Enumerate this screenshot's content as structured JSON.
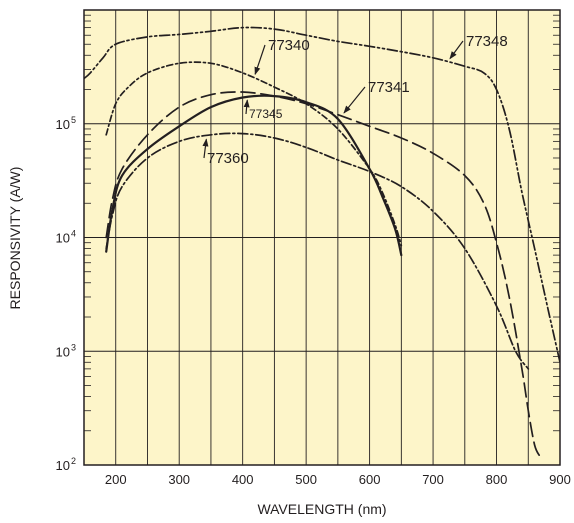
{
  "chart_data": {
    "type": "line",
    "xlabel": "WAVELENGTH (nm)",
    "ylabel": "RESPONSIVITY (A/W)",
    "xlim": [
      150,
      900
    ],
    "ylim_log10": [
      2,
      6
    ],
    "y_scale": "log",
    "grid": true,
    "x_ticks": [
      200,
      300,
      400,
      500,
      600,
      700,
      800,
      900
    ],
    "x_tick_labels": [
      "200",
      "300",
      "400",
      "500",
      "600",
      "700",
      "800",
      "900"
    ],
    "y_ticks": [
      {
        "value": 100,
        "base": "10",
        "exp": "2"
      },
      {
        "value": 1000,
        "base": "10",
        "exp": "3"
      },
      {
        "value": 10000,
        "base": "10",
        "exp": "4"
      },
      {
        "value": 100000,
        "base": "10",
        "exp": "5"
      }
    ],
    "colors": {
      "background": "#fdf5c9",
      "grid": "#231f20",
      "line": "#231f20"
    },
    "series": [
      {
        "name": "77348",
        "dash": "dash-dot-dot",
        "x": [
          150,
          160,
          180,
          200,
          250,
          300,
          350,
          400,
          450,
          500,
          550,
          600,
          650,
          700,
          750,
          780,
          800,
          820,
          840,
          860,
          880,
          900
        ],
        "y": [
          250000,
          280000,
          380000,
          500000,
          580000,
          610000,
          650000,
          700000,
          680000,
          600000,
          530000,
          480000,
          430000,
          380000,
          320000,
          280000,
          200000,
          90000,
          25000,
          8000,
          2500,
          800
        ]
      },
      {
        "name": "77340",
        "dash": "dotted-dash",
        "x": [
          185,
          200,
          220,
          250,
          300,
          350,
          400,
          450,
          500,
          550,
          600,
          620,
          640,
          650
        ],
        "y": [
          80000,
          150000,
          210000,
          280000,
          340000,
          340000,
          280000,
          210000,
          150000,
          90000,
          40000,
          25000,
          13000,
          8500
        ]
      },
      {
        "name": "77341",
        "dash": "long-dash",
        "x": [
          185,
          195,
          210,
          250,
          300,
          350,
          400,
          450,
          500,
          550,
          600,
          650,
          700,
          750,
          780,
          800,
          820,
          840,
          850,
          860,
          868
        ],
        "y": [
          10000,
          22000,
          40000,
          80000,
          140000,
          180000,
          190000,
          175000,
          150000,
          120000,
          95000,
          75000,
          55000,
          35000,
          20000,
          9000,
          3000,
          700,
          300,
          150,
          120
        ]
      },
      {
        "name": "77345",
        "dash": "solid",
        "x": [
          185,
          195,
          210,
          250,
          300,
          350,
          400,
          450,
          500,
          550,
          600,
          620,
          640,
          650
        ],
        "y": [
          7500,
          18000,
          35000,
          60000,
          95000,
          140000,
          170000,
          175000,
          155000,
          110000,
          40000,
          23000,
          12000,
          7000
        ]
      },
      {
        "name": "77360",
        "dash": "dash-dot",
        "x": [
          185,
          195,
          210,
          250,
          300,
          350,
          400,
          450,
          500,
          550,
          600,
          650,
          700,
          750,
          800,
          830,
          850
        ],
        "y": [
          8000,
          16000,
          28000,
          50000,
          70000,
          80000,
          82000,
          75000,
          62000,
          48000,
          38000,
          28000,
          17000,
          8000,
          2500,
          1000,
          700
        ]
      }
    ],
    "annotations": [
      {
        "text": "77340",
        "series": "77340",
        "small": false
      },
      {
        "text": "77348",
        "series": "77348",
        "small": false
      },
      {
        "text": "77341",
        "series": "77341",
        "small": false
      },
      {
        "text": "77345",
        "series": "77345",
        "small": true
      },
      {
        "text": "77360",
        "series": "77360",
        "small": false
      }
    ]
  }
}
